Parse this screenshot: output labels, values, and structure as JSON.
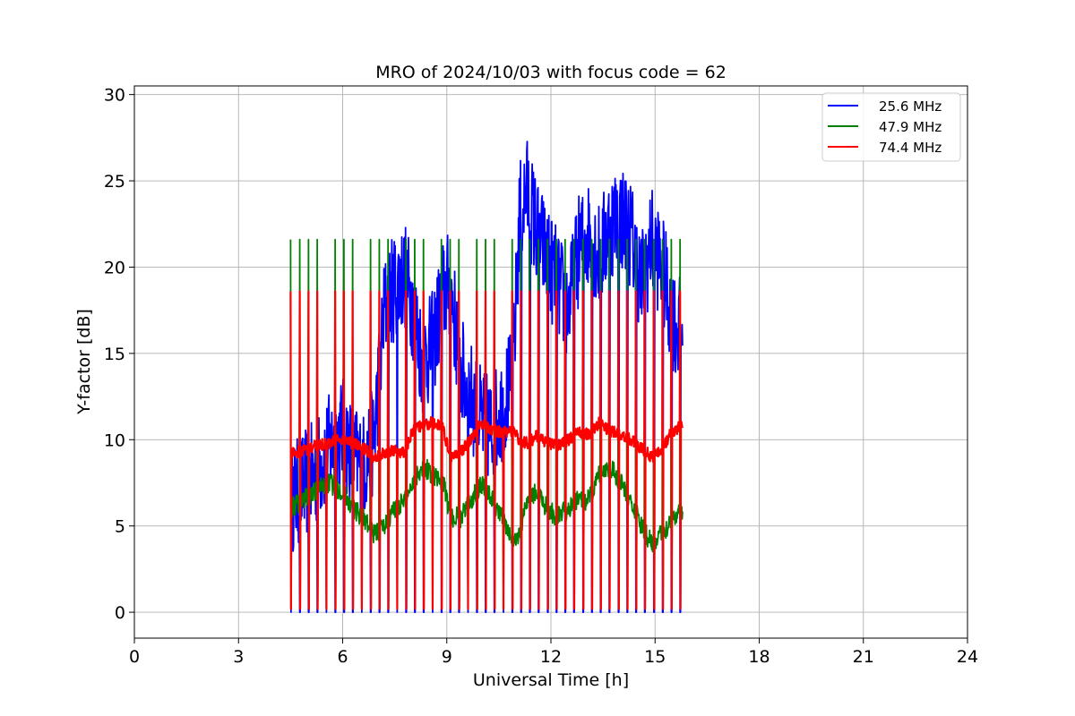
{
  "chart_data": {
    "type": "line",
    "title": "MRO of 2024/10/03 with focus code = 62",
    "xlabel": "Universal Time [h]",
    "ylabel": "Y-factor [dB]",
    "xlim": [
      0,
      24
    ],
    "ylim": [
      -1.5,
      30.5
    ],
    "xticks": [
      0,
      3,
      6,
      9,
      12,
      15,
      18,
      21,
      24
    ],
    "yticks": [
      0,
      5,
      10,
      15,
      20,
      25,
      30
    ],
    "grid": true,
    "legend_position": "top-right",
    "calibration_cycle": {
      "start_h": 4.5,
      "end_h": 15.8,
      "period_h": 0.255,
      "levels_db": {
        "25.6 MHz": 0,
        "47.9 MHz": 21.6,
        "74.4 MHz": 18.6
      }
    },
    "series": [
      {
        "name": "25.6 MHz",
        "color": "#0000ff",
        "x": [
          4.5,
          4.8,
          5.2,
          5.6,
          6.0,
          6.3,
          6.6,
          6.9,
          7.2,
          7.5,
          7.8,
          8.0,
          8.3,
          8.6,
          8.9,
          9.1,
          9.4,
          9.7,
          10.0,
          10.3,
          10.6,
          10.9,
          11.1,
          11.3,
          11.6,
          11.9,
          12.2,
          12.5,
          12.8,
          13.1,
          13.4,
          13.7,
          14.0,
          14.3,
          14.6,
          14.9,
          15.2,
          15.5,
          15.8
        ],
        "values": [
          6.5,
          7.2,
          8.0,
          9.5,
          10.5,
          9.0,
          8.5,
          10.0,
          17.5,
          19.0,
          19.5,
          18.0,
          14.5,
          15.5,
          18.5,
          19.0,
          14.0,
          12.5,
          11.0,
          10.5,
          12.0,
          13.5,
          23.0,
          24.5,
          22.0,
          20.5,
          19.0,
          17.5,
          21.0,
          22.0,
          20.5,
          22.5,
          23.0,
          22.0,
          19.0,
          21.5,
          20.0,
          17.0,
          16.0
        ]
      },
      {
        "name": "47.9 MHz",
        "color": "#008000",
        "x": [
          4.5,
          4.8,
          5.2,
          5.6,
          6.0,
          6.3,
          6.6,
          6.9,
          7.2,
          7.5,
          7.8,
          8.0,
          8.3,
          8.6,
          8.9,
          9.1,
          9.4,
          9.7,
          10.0,
          10.3,
          10.6,
          10.9,
          11.1,
          11.3,
          11.6,
          11.9,
          12.2,
          12.5,
          12.8,
          13.1,
          13.4,
          13.7,
          14.0,
          14.3,
          14.6,
          14.9,
          15.2,
          15.5,
          15.8
        ],
        "values": [
          6.0,
          6.5,
          7.0,
          7.5,
          7.0,
          6.0,
          5.5,
          4.5,
          5.0,
          6.0,
          6.5,
          7.5,
          8.5,
          8.0,
          7.5,
          5.5,
          5.5,
          6.5,
          7.5,
          6.5,
          5.5,
          4.0,
          4.5,
          6.5,
          7.0,
          6.0,
          5.5,
          6.0,
          6.5,
          6.5,
          8.0,
          8.5,
          7.5,
          6.5,
          5.0,
          4.0,
          4.5,
          5.5,
          6.0
        ]
      },
      {
        "name": "74.4 MHz",
        "color": "#ff0000",
        "x": [
          4.5,
          4.8,
          5.2,
          5.6,
          6.0,
          6.3,
          6.6,
          6.9,
          7.2,
          7.5,
          7.8,
          8.0,
          8.3,
          8.6,
          8.9,
          9.1,
          9.4,
          9.7,
          10.0,
          10.3,
          10.6,
          10.9,
          11.1,
          11.3,
          11.6,
          11.9,
          12.2,
          12.5,
          12.8,
          13.1,
          13.4,
          13.7,
          14.0,
          14.3,
          14.6,
          14.9,
          15.2,
          15.5,
          15.8
        ],
        "values": [
          9.2,
          9.3,
          9.6,
          9.8,
          10.0,
          9.8,
          9.5,
          9.0,
          9.2,
          9.4,
          9.2,
          10.5,
          10.8,
          11.0,
          10.6,
          9.0,
          9.3,
          10.0,
          11.0,
          10.6,
          10.4,
          10.5,
          10.0,
          9.8,
          10.2,
          9.8,
          9.7,
          10.0,
          10.5,
          10.3,
          11.0,
          10.5,
          10.3,
          10.0,
          9.5,
          9.0,
          9.5,
          10.5,
          10.8
        ]
      }
    ]
  }
}
